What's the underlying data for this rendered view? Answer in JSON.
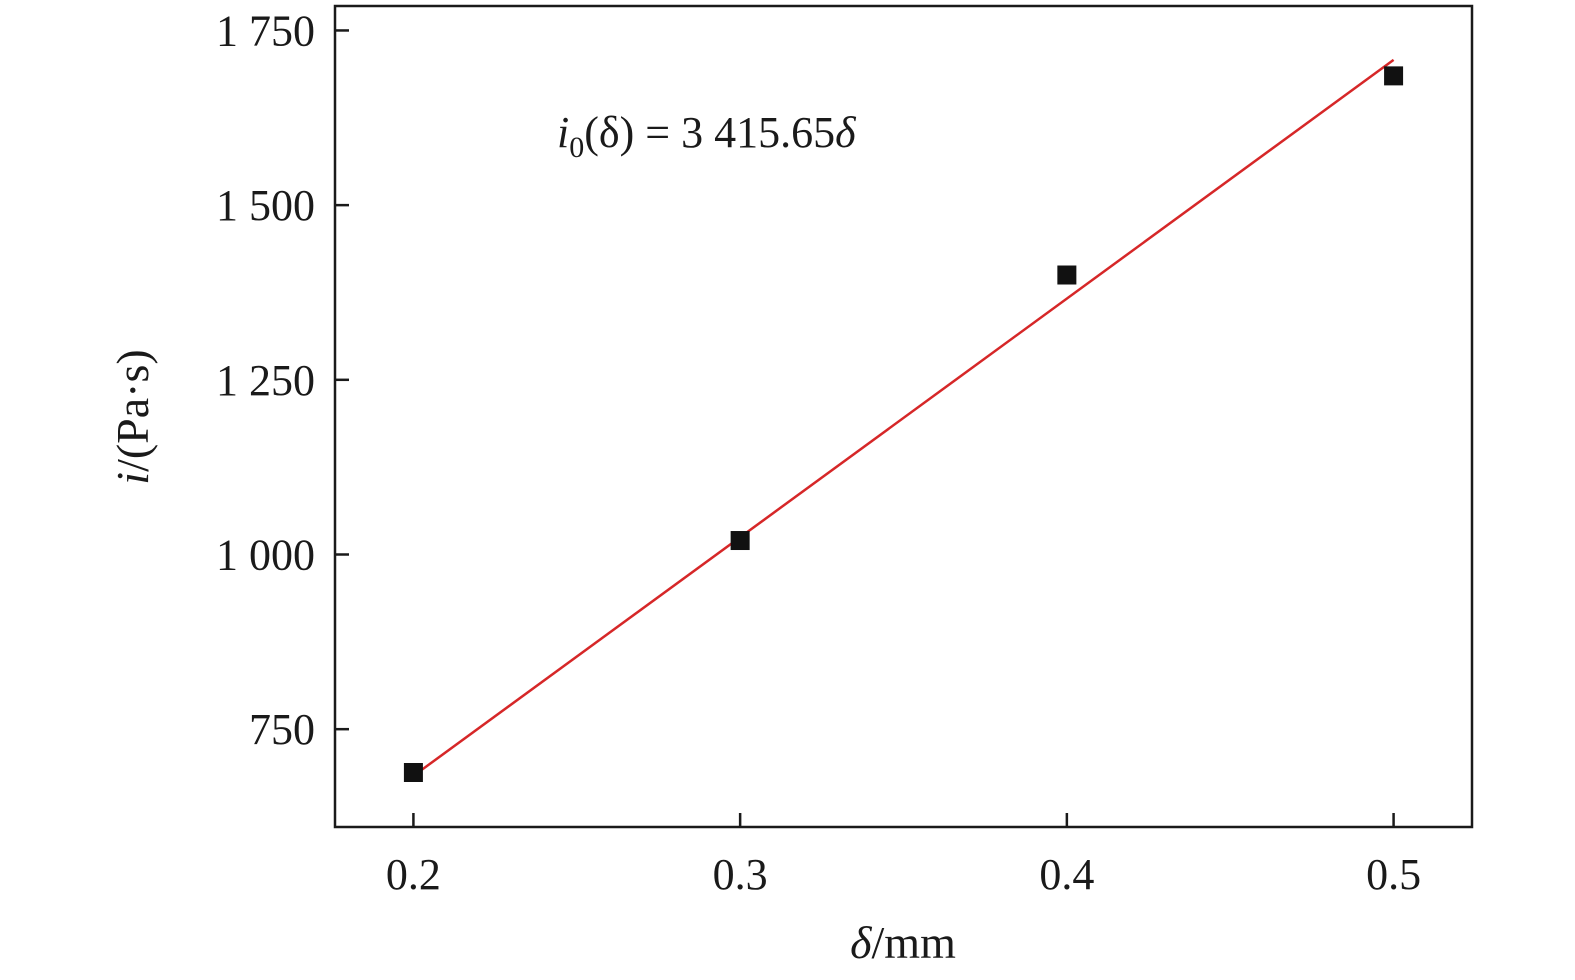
{
  "chart_data": {
    "type": "scatter",
    "x": [
      0.2,
      0.3,
      0.4,
      0.5
    ],
    "series": [
      {
        "values": [
          688,
          1020,
          1400,
          1685
        ],
        "color": "#111111",
        "marker": "square"
      }
    ],
    "fit": {
      "slope": 3415.65,
      "color": "#d62728"
    },
    "xlabel": {
      "main": "δ",
      "rest": "/mm"
    },
    "ylabel": {
      "main": "i",
      "rest": "/(Pa·s)"
    },
    "annotation": {
      "lhs_var": "i",
      "lhs_sub": "0",
      "lhs_arg": "(δ) = 3 415.65",
      "rhs_var": "δ"
    },
    "xticks": [
      0.2,
      0.3,
      0.4,
      0.5
    ],
    "xtick_labels": [
      "0.2",
      "0.3",
      "0.4",
      "0.5"
    ],
    "yticks": [
      750,
      1000,
      1250,
      1500,
      1750
    ],
    "ytick_labels": [
      "750",
      "1 000",
      "1 250",
      "1 500",
      "1 750"
    ],
    "xlim": [
      0.176,
      0.524
    ],
    "ylim": [
      610,
      1785
    ],
    "grid": false,
    "legend": "none"
  }
}
